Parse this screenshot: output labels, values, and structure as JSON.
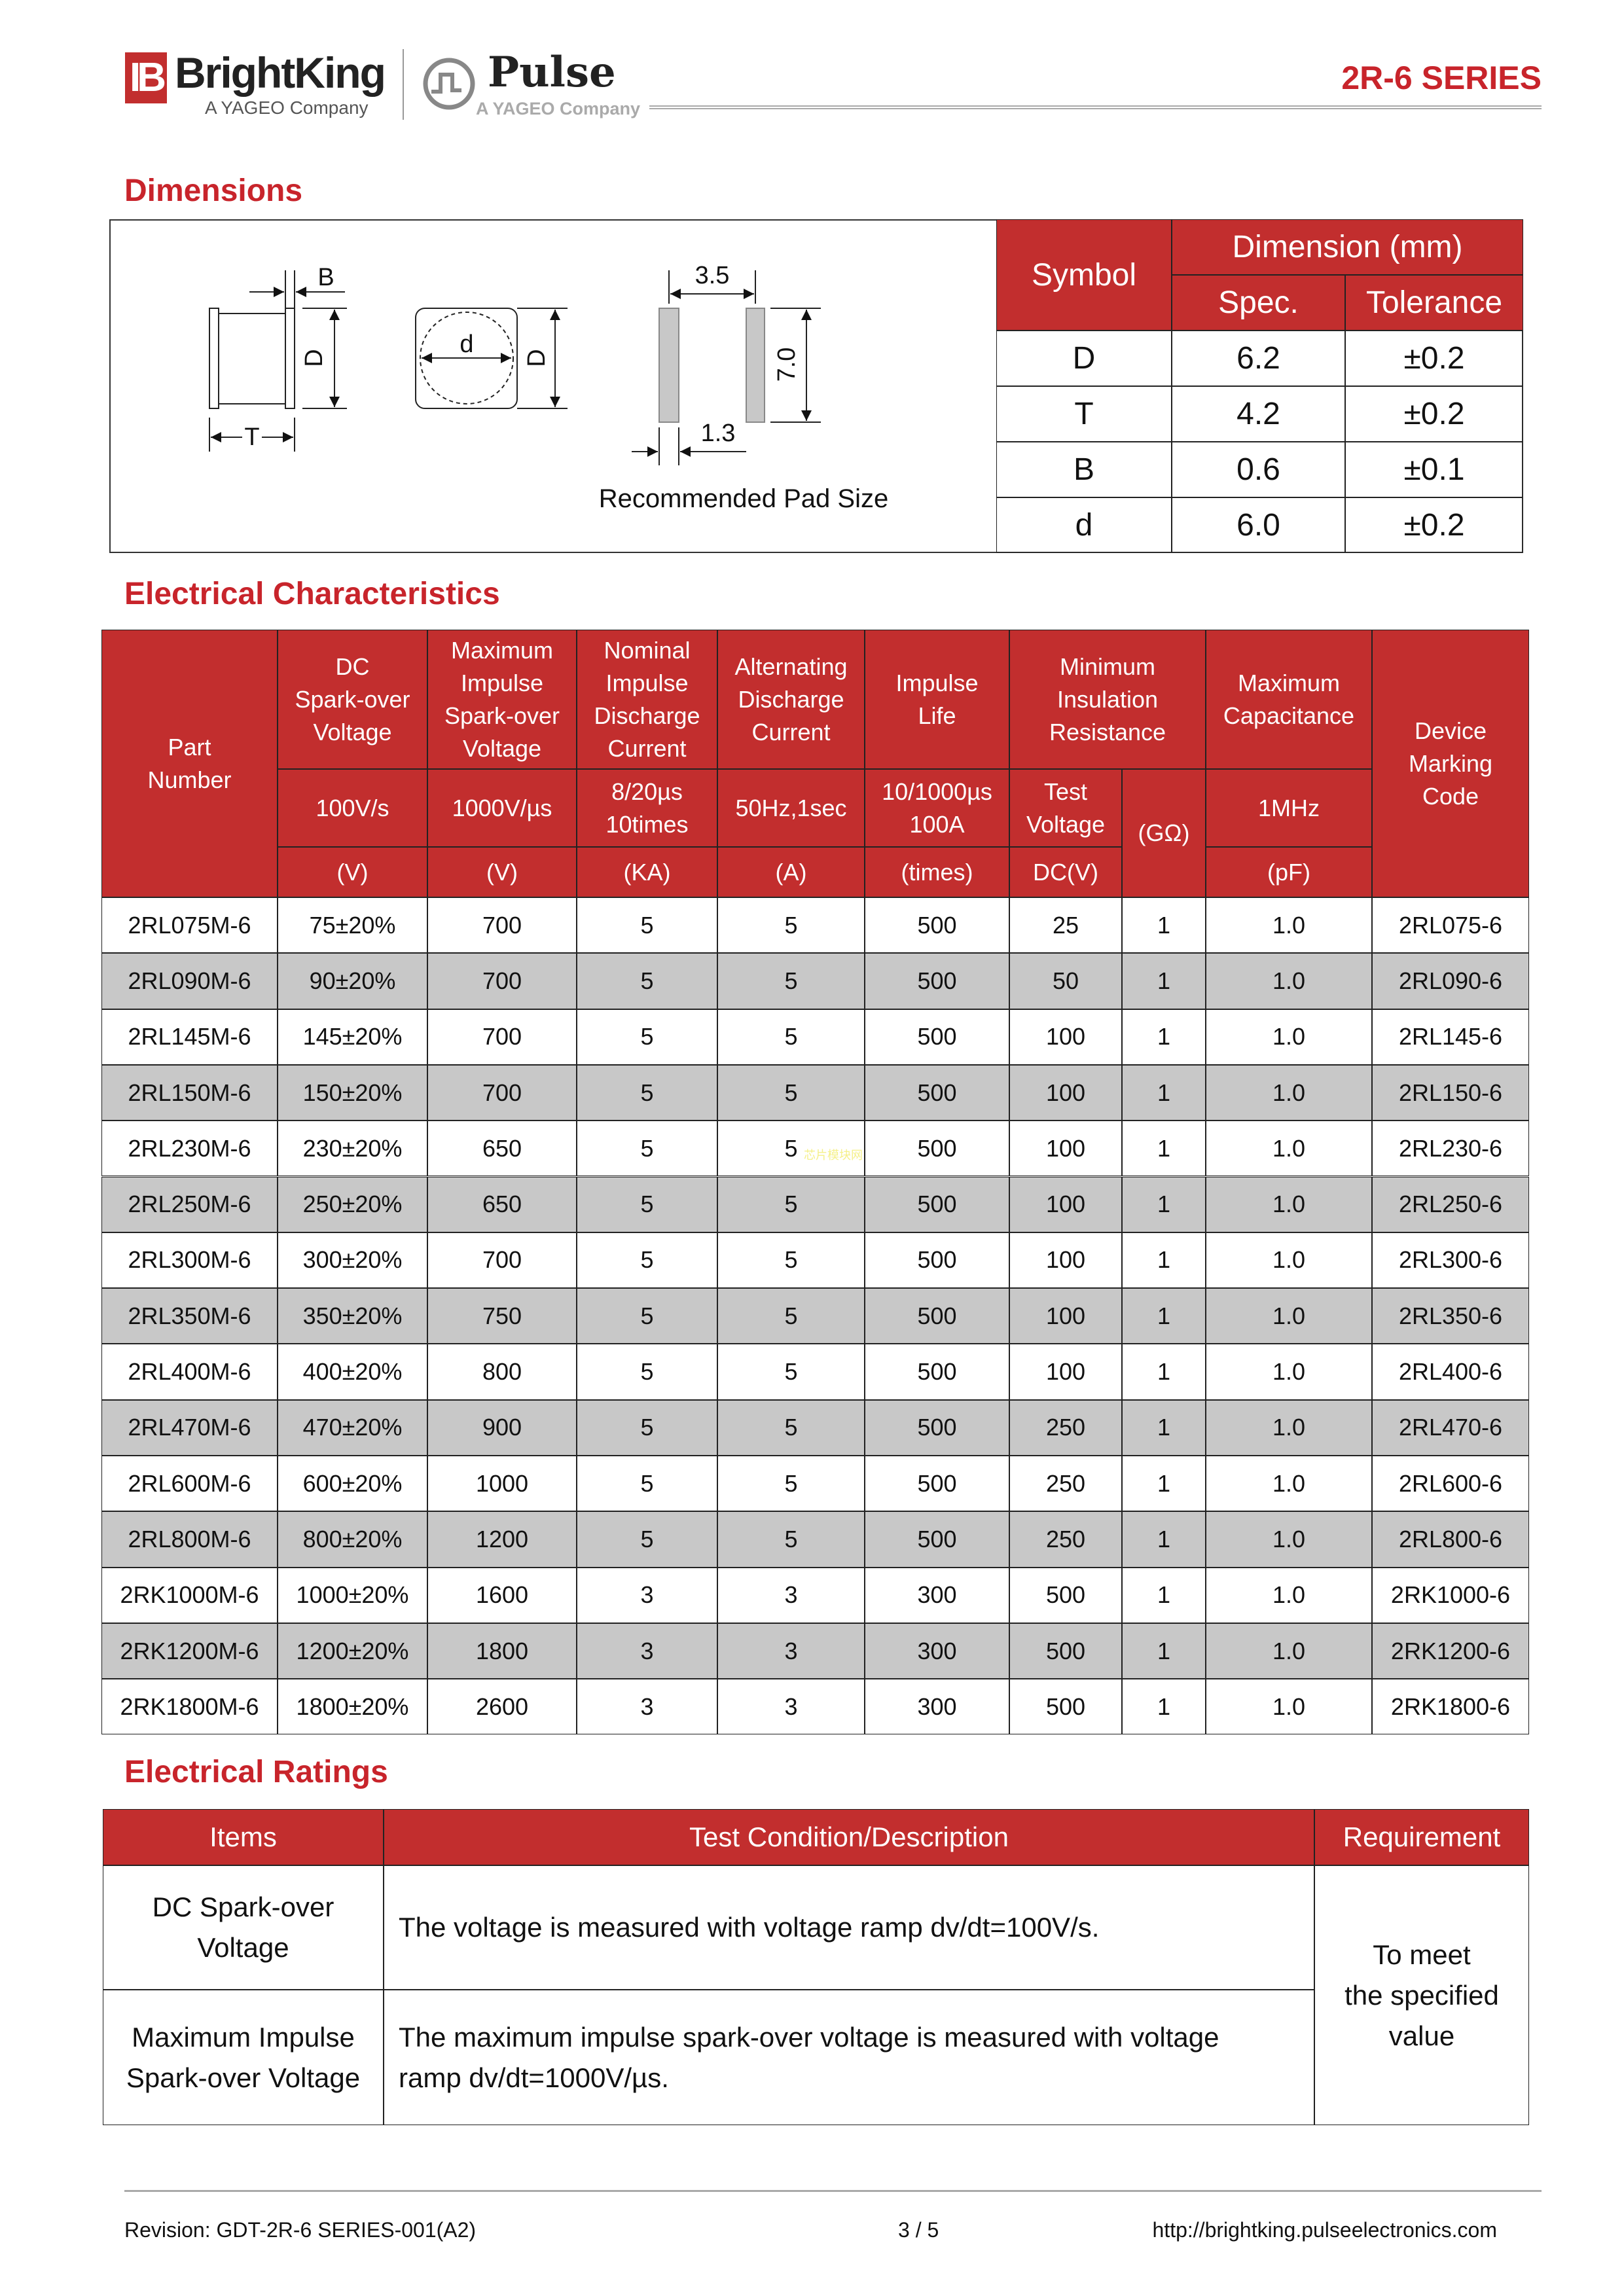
{
  "header": {
    "brand1": "BrightKing",
    "brand1_mark": "IB",
    "brand1_sub": "A YAGEO Company",
    "brand2": "Pulse",
    "brand2_sub": "A YAGEO Company",
    "series": "2R-6 SERIES"
  },
  "colors": {
    "accent": "#c8242b",
    "header_fill": "#c22e2e",
    "row_alt": "#c8c8c8"
  },
  "dimensions": {
    "title": "Dimensions",
    "drawing_labels": {
      "B": "B",
      "D": "D",
      "T": "T",
      "d": "d",
      "pad_spacing": "3.5",
      "pad_length": "7.0",
      "pad_width": "1.3"
    },
    "pad_caption": "Recommended Pad Size",
    "table": {
      "symbol": "Symbol",
      "dimension": "Dimension (mm)",
      "spec": "Spec.",
      "tolerance": "Tolerance",
      "rows": [
        {
          "symbol": "D",
          "spec": "6.2",
          "tolerance": "±0.2"
        },
        {
          "symbol": "T",
          "spec": "4.2",
          "tolerance": "±0.2"
        },
        {
          "symbol": "B",
          "spec": "0.6",
          "tolerance": "±0.1"
        },
        {
          "symbol": "d",
          "spec": "6.0",
          "tolerance": "±0.2"
        }
      ]
    }
  },
  "electrical": {
    "title": "Electrical Characteristics",
    "headers": {
      "part": "Part\nNumber",
      "dc": "DC\nSpark-over\nVoltage",
      "dc_cond": "100V/s",
      "dc_unit": "(V)",
      "imp": "Maximum\nImpulse\nSpark-over\nVoltage",
      "imp_cond": "1000V/µs",
      "imp_unit": "(V)",
      "nom": "Nominal\nImpulse\nDischarge\nCurrent",
      "nom_cond": "8/20µs\n10times",
      "nom_unit": "(KA)",
      "ac": "Alternating\nDischarge\nCurrent",
      "ac_cond": "50Hz,1sec",
      "ac_unit": "(A)",
      "life": "Impulse\nLife",
      "life_cond": "10/1000µs\n100A",
      "life_unit": "(times)",
      "ins": "Minimum\nInsulation\nResistance",
      "ins_test": "Test\nVoltage",
      "ins_test_unit": "DC(V)",
      "ins_unit": "(GΩ)",
      "cap": "Maximum\nCapacitance",
      "cap_cond": "1MHz",
      "cap_unit": "(pF)",
      "mark": "Device\nMarking\nCode"
    },
    "rows": [
      [
        "2RL075M-6",
        "75±20%",
        "700",
        "5",
        "5",
        "500",
        "25",
        "1",
        "1.0",
        "2RL075-6"
      ],
      [
        "2RL090M-6",
        "90±20%",
        "700",
        "5",
        "5",
        "500",
        "50",
        "1",
        "1.0",
        "2RL090-6"
      ],
      [
        "2RL145M-6",
        "145±20%",
        "700",
        "5",
        "5",
        "500",
        "100",
        "1",
        "1.0",
        "2RL145-6"
      ],
      [
        "2RL150M-6",
        "150±20%",
        "700",
        "5",
        "5",
        "500",
        "100",
        "1",
        "1.0",
        "2RL150-6"
      ],
      [
        "2RL230M-6",
        "230±20%",
        "650",
        "5",
        "5",
        "500",
        "100",
        "1",
        "1.0",
        "2RL230-6"
      ],
      [
        "2RL250M-6",
        "250±20%",
        "650",
        "5",
        "5",
        "500",
        "100",
        "1",
        "1.0",
        "2RL250-6"
      ],
      [
        "2RL300M-6",
        "300±20%",
        "700",
        "5",
        "5",
        "500",
        "100",
        "1",
        "1.0",
        "2RL300-6"
      ],
      [
        "2RL350M-6",
        "350±20%",
        "750",
        "5",
        "5",
        "500",
        "100",
        "1",
        "1.0",
        "2RL350-6"
      ],
      [
        "2RL400M-6",
        "400±20%",
        "800",
        "5",
        "5",
        "500",
        "100",
        "1",
        "1.0",
        "2RL400-6"
      ],
      [
        "2RL470M-6",
        "470±20%",
        "900",
        "5",
        "5",
        "500",
        "250",
        "1",
        "1.0",
        "2RL470-6"
      ],
      [
        "2RL600M-6",
        "600±20%",
        "1000",
        "5",
        "5",
        "500",
        "250",
        "1",
        "1.0",
        "2RL600-6"
      ],
      [
        "2RL800M-6",
        "800±20%",
        "1200",
        "5",
        "5",
        "500",
        "250",
        "1",
        "1.0",
        "2RL800-6"
      ],
      [
        "2RK1000M-6",
        "1000±20%",
        "1600",
        "3",
        "3",
        "300",
        "500",
        "1",
        "1.0",
        "2RK1000-6"
      ],
      [
        "2RK1200M-6",
        "1200±20%",
        "1800",
        "3",
        "3",
        "300",
        "500",
        "1",
        "1.0",
        "2RK1200-6"
      ],
      [
        "2RK1800M-6",
        "1800±20%",
        "2600",
        "3",
        "3",
        "300",
        "500",
        "1",
        "1.0",
        "2RK1800-6"
      ]
    ],
    "watermark": "芯片模块网"
  },
  "ratings": {
    "title": "Electrical Ratings",
    "headers": {
      "items": "Items",
      "test": "Test Condition/Description",
      "req": "Requirement"
    },
    "rows": [
      {
        "item": "DC Spark-over\nVoltage",
        "desc": "The voltage is measured with voltage ramp dv/dt=100V/s."
      },
      {
        "item": "Maximum Impulse\nSpark-over Voltage",
        "desc": "The maximum impulse spark-over voltage is measured with voltage\nramp dv/dt=1000V/µs."
      }
    ],
    "requirement": "To meet\nthe specified\nvalue"
  },
  "footer": {
    "revision": "Revision: GDT-2R-6 SERIES-001(A2)",
    "page": "3 / 5",
    "url": "http://brightking.pulseelectronics.com"
  }
}
